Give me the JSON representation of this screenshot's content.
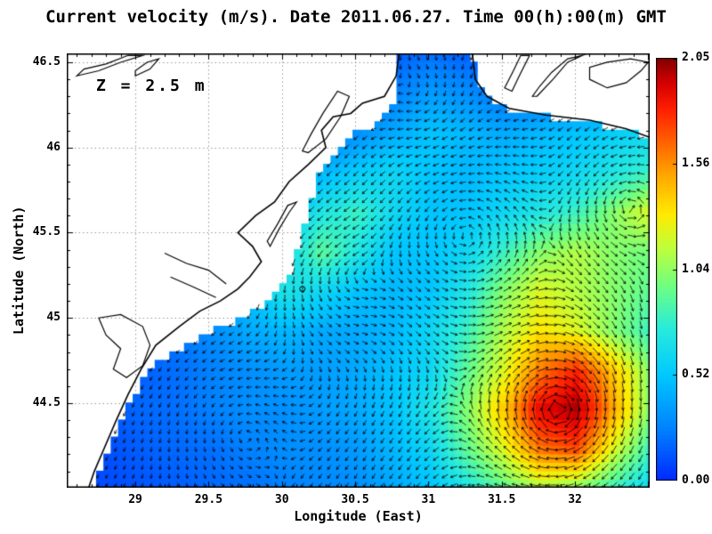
{
  "title": "Current velocity (m/s). Date 2011.06.27. Time 00(h):00(m) GMT",
  "annotation": "Z = 2.5 m",
  "axes": {
    "x": {
      "label": "Longitude (East)"
    },
    "y": {
      "label": "Latitude (North)"
    }
  },
  "chart_data": {
    "type": "heatmap",
    "subtype": "ocean_current_vector_field",
    "title": "Current velocity (m/s). Date 2011.06.27. Time 00(h):00(m) GMT",
    "xlabel": "Longitude (East)",
    "ylabel": "Latitude (North)",
    "units": "m/s",
    "depth_annotation": "Z = 2.5 m",
    "xlim": [
      28.532,
      32.51
    ],
    "ylim": [
      44.004,
      46.552
    ],
    "xticks": [
      29,
      29.5,
      30,
      30.5,
      31,
      31.5,
      32
    ],
    "xtick_labels": [
      "29",
      "29.5",
      "30",
      "30.5",
      "31",
      "31.5",
      "32"
    ],
    "yticks": [
      44.5,
      45,
      45.5,
      46,
      46.5
    ],
    "ytick_labels": [
      "44.5",
      "45",
      "45.5",
      "46",
      "46.5"
    ],
    "grid_on": true,
    "colorbar": {
      "min": 0,
      "max": 2.05,
      "ticks": [
        0,
        0.52,
        1.04,
        1.56,
        2.05
      ],
      "tick_labels": [
        "0.00",
        "0.52",
        "1.04",
        "1.56",
        "2.05"
      ],
      "position": "right"
    },
    "colormap_stops": [
      [
        0,
        0,
        40,
        255
      ],
      [
        0.12,
        0,
        128,
        255
      ],
      [
        0.25,
        0,
        200,
        255
      ],
      [
        0.36,
        40,
        235,
        220
      ],
      [
        0.46,
        110,
        255,
        130
      ],
      [
        0.55,
        190,
        255,
        60
      ],
      [
        0.63,
        255,
        235,
        0
      ],
      [
        0.72,
        255,
        170,
        0
      ],
      [
        0.8,
        255,
        100,
        0
      ],
      [
        0.88,
        255,
        30,
        0
      ],
      [
        0.94,
        215,
        0,
        0
      ],
      [
        1,
        128,
        0,
        0
      ]
    ],
    "magnitude_grid": {
      "lon_start": 28.53,
      "lon_end": 32.51,
      "lat_north": 46.55,
      "lat_south": 44.0,
      "nx": 17,
      "ny": 12,
      "row_order": "north_to_south",
      "values": [
        [
          0.1,
          0.1,
          0.1,
          0.1,
          0.1,
          0.1,
          0.1,
          0.1,
          0.1,
          0.15,
          0.2,
          0.15,
          0.1,
          0.1,
          0.1,
          0.1,
          0.1
        ],
        [
          0.1,
          0.1,
          0.1,
          0.1,
          0.1,
          0.1,
          0.1,
          0.1,
          0.15,
          0.25,
          0.35,
          0.3,
          0.2,
          0.2,
          0.2,
          0.2,
          0.2
        ],
        [
          0.1,
          0.1,
          0.1,
          0.1,
          0.1,
          0.1,
          0.15,
          0.2,
          0.3,
          0.4,
          0.5,
          0.45,
          0.4,
          0.45,
          0.5,
          0.55,
          0.6
        ],
        [
          0.1,
          0.1,
          0.1,
          0.1,
          0.1,
          0.2,
          0.3,
          0.45,
          0.55,
          0.6,
          0.5,
          0.45,
          0.5,
          0.55,
          0.6,
          0.7,
          0.8
        ],
        [
          0.1,
          0.1,
          0.1,
          0.1,
          0.2,
          0.3,
          0.5,
          0.7,
          0.8,
          0.6,
          0.5,
          0.5,
          0.6,
          0.7,
          0.8,
          1.0,
          1.2
        ],
        [
          0.1,
          0.1,
          0.1,
          0.15,
          0.25,
          0.4,
          0.6,
          0.9,
          0.7,
          0.5,
          0.5,
          0.6,
          0.8,
          1.0,
          1.1,
          1.0,
          0.95
        ],
        [
          0.1,
          0.1,
          0.1,
          0.2,
          0.25,
          0.5,
          0.7,
          0.6,
          0.5,
          0.45,
          0.5,
          0.7,
          1.0,
          1.2,
          1.1,
          1.0,
          0.9
        ],
        [
          0.1,
          0.1,
          0.15,
          0.2,
          0.3,
          0.4,
          0.45,
          0.4,
          0.4,
          0.45,
          0.6,
          0.8,
          1.1,
          1.3,
          1.2,
          1.0,
          0.8
        ],
        [
          0.1,
          0.12,
          0.15,
          0.2,
          0.25,
          0.3,
          0.35,
          0.35,
          0.4,
          0.5,
          0.6,
          0.9,
          1.2,
          1.6,
          1.8,
          1.4,
          1.0
        ],
        [
          0.1,
          0.12,
          0.18,
          0.2,
          0.25,
          0.3,
          0.3,
          0.35,
          0.4,
          0.5,
          0.7,
          1.0,
          1.4,
          1.9,
          2.0,
          1.5,
          1.0
        ],
        [
          0.1,
          0.1,
          0.15,
          0.18,
          0.2,
          0.25,
          0.3,
          0.3,
          0.35,
          0.45,
          0.6,
          0.9,
          1.2,
          1.6,
          1.7,
          1.2,
          0.8
        ],
        [
          0.1,
          0.1,
          0.12,
          0.15,
          0.18,
          0.2,
          0.25,
          0.28,
          0.3,
          0.4,
          0.5,
          0.7,
          0.9,
          1.1,
          1.0,
          0.8,
          0.6
        ]
      ]
    },
    "eddies": [
      {
        "lon": 31.15,
        "lat": 45.55,
        "r": 0.55,
        "s": 1.0
      },
      {
        "lon": 31.95,
        "lat": 44.42,
        "r": 0.5,
        "s": -1.4
      },
      {
        "lon": 30.35,
        "lat": 45.25,
        "r": 0.4,
        "s": 0.9
      },
      {
        "lon": 31.0,
        "lat": 46.2,
        "r": 0.3,
        "s": -0.7
      },
      {
        "lon": 32.3,
        "lat": 45.7,
        "r": 0.35,
        "s": 0.8
      },
      {
        "lon": 29.6,
        "lat": 44.4,
        "r": 0.45,
        "s": 0.6
      }
    ],
    "drift": [
      -0.12,
      -0.18
    ],
    "sea_mask_polygon": [
      [
        30.8,
        46.55
      ],
      [
        30.8,
        46.35
      ],
      [
        30.74,
        46.22
      ],
      [
        30.6,
        46.12
      ],
      [
        30.45,
        46.06
      ],
      [
        30.35,
        45.95
      ],
      [
        30.25,
        45.85
      ],
      [
        30.2,
        45.7
      ],
      [
        30.15,
        45.55
      ],
      [
        30.1,
        45.4
      ],
      [
        30.05,
        45.25
      ],
      [
        29.9,
        45.1
      ],
      [
        29.6,
        44.95
      ],
      [
        29.35,
        44.85
      ],
      [
        29.1,
        44.7
      ],
      [
        29.0,
        44.55
      ],
      [
        28.9,
        44.4
      ],
      [
        28.82,
        44.25
      ],
      [
        28.75,
        44.1
      ],
      [
        28.72,
        44.0
      ],
      [
        32.51,
        44.0
      ],
      [
        32.51,
        46.05
      ],
      [
        32.35,
        46.1
      ],
      [
        32.1,
        46.15
      ],
      [
        31.8,
        46.18
      ],
      [
        31.55,
        46.22
      ],
      [
        31.4,
        46.3
      ],
      [
        31.32,
        46.4
      ],
      [
        31.3,
        46.55
      ]
    ],
    "coastlines": [
      [
        [
          30.8,
          46.55
        ],
        [
          30.78,
          46.42
        ],
        [
          30.7,
          46.3
        ],
        [
          30.55,
          46.26
        ],
        [
          30.47,
          46.2
        ],
        [
          30.35,
          46.18
        ],
        [
          30.27,
          46.1
        ],
        [
          30.3,
          46.0
        ],
        [
          30.18,
          45.9
        ],
        [
          30.05,
          45.8
        ],
        [
          29.95,
          45.68
        ],
        [
          29.82,
          45.6
        ],
        [
          29.7,
          45.5
        ],
        [
          29.8,
          45.42
        ],
        [
          29.86,
          45.33
        ],
        [
          29.78,
          45.24
        ],
        [
          29.7,
          45.17
        ],
        [
          29.58,
          45.1
        ],
        [
          29.44,
          45.04
        ],
        [
          29.3,
          44.95
        ],
        [
          29.14,
          44.84
        ],
        [
          29.04,
          44.7
        ],
        [
          28.95,
          44.55
        ],
        [
          28.87,
          44.4
        ],
        [
          28.79,
          44.24
        ],
        [
          28.72,
          44.1
        ],
        [
          28.68,
          44.0
        ]
      ],
      [
        [
          31.3,
          46.55
        ],
        [
          31.32,
          46.4
        ],
        [
          31.4,
          46.3
        ],
        [
          31.55,
          46.23
        ],
        [
          31.8,
          46.19
        ],
        [
          32.1,
          46.16
        ],
        [
          32.35,
          46.11
        ],
        [
          32.51,
          46.06
        ]
      ]
    ],
    "lake_shapes": [
      [
        [
          28.6,
          46.42
        ],
        [
          28.75,
          46.45
        ],
        [
          28.9,
          46.5
        ],
        [
          29.05,
          46.54
        ],
        [
          28.95,
          46.54
        ],
        [
          28.8,
          46.49
        ],
        [
          28.65,
          46.46
        ]
      ],
      [
        [
          29.0,
          46.42
        ],
        [
          29.1,
          46.46
        ],
        [
          29.16,
          46.52
        ],
        [
          29.08,
          46.5
        ],
        [
          29.0,
          46.45
        ]
      ],
      [
        [
          30.18,
          45.97
        ],
        [
          30.3,
          46.05
        ],
        [
          30.4,
          46.18
        ],
        [
          30.46,
          46.3
        ],
        [
          30.38,
          46.33
        ],
        [
          30.28,
          46.2
        ],
        [
          30.2,
          46.08
        ],
        [
          30.14,
          45.98
        ]
      ],
      [
        [
          31.52,
          46.35
        ],
        [
          31.58,
          46.45
        ],
        [
          31.63,
          46.54
        ],
        [
          31.69,
          46.54
        ],
        [
          31.62,
          46.42
        ],
        [
          31.57,
          46.33
        ]
      ],
      [
        [
          31.74,
          46.3
        ],
        [
          31.85,
          46.4
        ],
        [
          31.95,
          46.5
        ],
        [
          32.05,
          46.54
        ],
        [
          31.95,
          46.52
        ],
        [
          31.84,
          46.44
        ],
        [
          31.76,
          46.36
        ],
        [
          31.71,
          46.3
        ]
      ],
      [
        [
          32.1,
          46.4
        ],
        [
          32.22,
          46.35
        ],
        [
          32.35,
          46.38
        ],
        [
          32.45,
          46.45
        ],
        [
          32.5,
          46.5
        ],
        [
          32.38,
          46.52
        ],
        [
          32.22,
          46.5
        ],
        [
          32.1,
          46.47
        ]
      ],
      [
        [
          28.75,
          45.0
        ],
        [
          28.9,
          45.02
        ],
        [
          29.05,
          44.95
        ],
        [
          29.1,
          44.84
        ],
        [
          29.05,
          44.72
        ],
        [
          28.94,
          44.65
        ],
        [
          28.85,
          44.7
        ],
        [
          28.9,
          44.82
        ],
        [
          28.8,
          44.9
        ]
      ],
      [
        [
          29.92,
          45.42
        ],
        [
          29.98,
          45.52
        ],
        [
          30.05,
          45.62
        ],
        [
          30.1,
          45.68
        ],
        [
          30.04,
          45.66
        ],
        [
          29.97,
          45.55
        ],
        [
          29.9,
          45.45
        ]
      ]
    ],
    "river_lines": [
      [
        [
          29.2,
          45.38
        ],
        [
          29.35,
          45.32
        ],
        [
          29.5,
          45.28
        ],
        [
          29.62,
          45.2
        ]
      ],
      [
        [
          29.24,
          45.24
        ],
        [
          29.4,
          45.18
        ],
        [
          29.55,
          45.12
        ]
      ]
    ],
    "station_marker": {
      "lon": 30.14,
      "lat": 45.17
    }
  }
}
